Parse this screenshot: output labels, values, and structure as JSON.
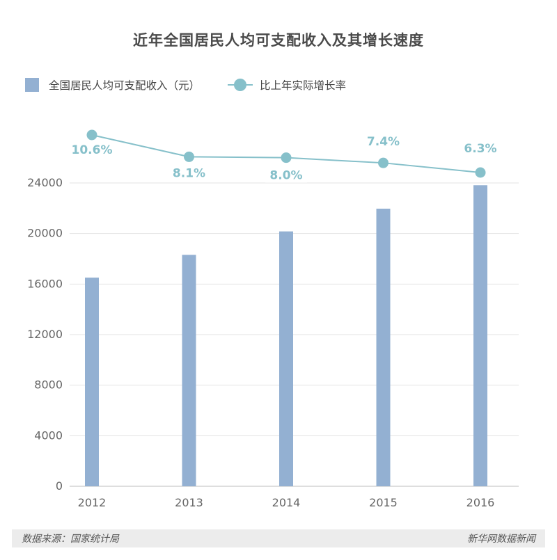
{
  "title": "近年全国居民人均可支配收入及其增长速度",
  "legend": {
    "bar_label": "全国居民人均可支配收入（元）",
    "line_label": "比上年实际增长率"
  },
  "colors": {
    "bar": "#93b0d2",
    "line": "#86c0ca",
    "grid": "#e3e3e3",
    "axis_text": "#666666"
  },
  "chart_data": {
    "type": "bar",
    "categories": [
      "2012",
      "2013",
      "2014",
      "2015",
      "2016"
    ],
    "ylim": [
      0,
      24000
    ],
    "yticks": [
      0,
      4000,
      8000,
      12000,
      16000,
      20000,
      24000
    ],
    "grid": true,
    "legend_position": "top-left",
    "series": [
      {
        "name": "全国居民人均可支配收入（元）",
        "type": "bar",
        "values": [
          16510,
          18311,
          20167,
          21966,
          23821
        ]
      },
      {
        "name": "比上年实际增长率",
        "type": "line",
        "values": [
          10.6,
          8.1,
          8.0,
          7.4,
          6.3
        ],
        "labels": [
          "10.6%",
          "8.1%",
          "8.0%",
          "7.4%",
          "6.3%"
        ]
      }
    ]
  },
  "footer": {
    "source": "数据来源：国家统计局",
    "credit": "新华网数据新闻"
  }
}
